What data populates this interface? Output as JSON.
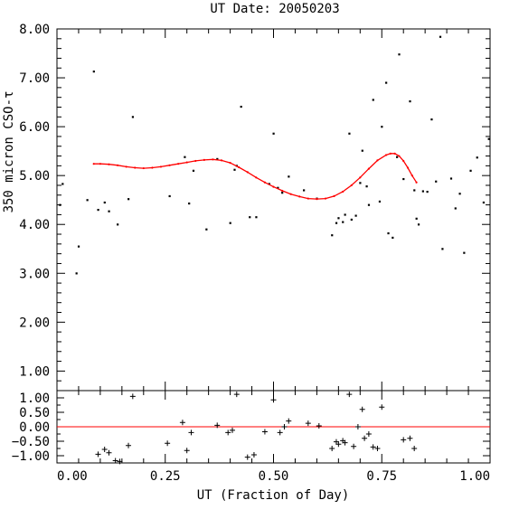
{
  "chart_data": [
    {
      "type": "scatter",
      "panel": "main",
      "title": "UT Date: 20050203",
      "xlabel": "",
      "ylabel": "350 micron CSO-τ",
      "xlim": [
        0.0,
        1.0
      ],
      "ylim": [
        0.6,
        8.0
      ],
      "yticks": [
        1.0,
        2.0,
        3.0,
        4.0,
        5.0,
        6.0,
        7.0,
        8.0
      ],
      "ytick_labels": [
        "1.00",
        "2.00",
        "3.00",
        "4.00",
        "5.00",
        "6.00",
        "7.00",
        "8.00"
      ],
      "grid": false,
      "series": [
        {
          "kind": "points",
          "color": "#000000",
          "x": [
            0.007,
            0.013,
            0.045,
            0.05,
            0.07,
            0.085,
            0.095,
            0.11,
            0.12,
            0.14,
            0.165,
            0.175,
            0.26,
            0.295,
            0.305,
            0.315,
            0.345,
            0.37,
            0.4,
            0.41,
            0.415,
            0.425,
            0.445,
            0.46,
            0.49,
            0.5,
            0.51,
            0.52,
            0.535,
            0.57,
            0.6,
            0.635,
            0.645,
            0.65,
            0.66,
            0.665,
            0.675,
            0.68,
            0.69,
            0.7,
            0.705,
            0.715,
            0.72,
            0.73,
            0.745,
            0.75,
            0.76,
            0.765,
            0.775,
            0.785,
            0.79,
            0.8,
            0.815,
            0.825,
            0.83,
            0.835,
            0.845,
            0.855,
            0.865,
            0.875,
            0.885,
            0.89,
            0.91,
            0.92,
            0.93,
            0.94,
            0.955,
            0.97,
            0.985,
            0.997
          ],
          "y": [
            4.4,
            4.83,
            3.0,
            3.55,
            4.5,
            7.13,
            4.3,
            4.45,
            4.27,
            4.0,
            4.52,
            6.2,
            4.58,
            5.38,
            4.43,
            5.1,
            3.9,
            5.34,
            4.03,
            5.12,
            5.2,
            6.41,
            4.15,
            4.15,
            4.83,
            5.86,
            4.75,
            4.65,
            4.98,
            4.7,
            4.53,
            3.78,
            4.03,
            4.13,
            4.05,
            4.2,
            5.86,
            4.1,
            4.18,
            4.85,
            5.51,
            4.78,
            4.4,
            6.55,
            4.47,
            6.0,
            6.9,
            3.82,
            3.73,
            5.38,
            7.48,
            4.93,
            6.52,
            4.7,
            4.12,
            4.0,
            4.68,
            4.67,
            6.15,
            4.88,
            7.84,
            3.5,
            4.94,
            4.33,
            4.63,
            3.42,
            5.1,
            5.37,
            4.45,
            5.75
          ]
        },
        {
          "kind": "fit",
          "color": "#ff0000",
          "x": [
            0.085,
            0.1,
            0.12,
            0.14,
            0.16,
            0.18,
            0.2,
            0.22,
            0.24,
            0.26,
            0.28,
            0.3,
            0.32,
            0.34,
            0.36,
            0.38,
            0.4,
            0.42,
            0.44,
            0.46,
            0.48,
            0.5,
            0.52,
            0.54,
            0.56,
            0.58,
            0.6,
            0.62,
            0.64,
            0.66,
            0.68,
            0.7,
            0.72,
            0.74,
            0.76,
            0.77,
            0.78,
            0.79,
            0.8,
            0.81,
            0.82,
            0.83
          ],
          "y": [
            5.24,
            5.24,
            5.23,
            5.21,
            5.18,
            5.16,
            5.15,
            5.16,
            5.18,
            5.21,
            5.24,
            5.27,
            5.3,
            5.32,
            5.33,
            5.31,
            5.26,
            5.17,
            5.07,
            4.96,
            4.86,
            4.77,
            4.69,
            4.62,
            4.57,
            4.53,
            4.52,
            4.53,
            4.58,
            4.67,
            4.8,
            4.96,
            5.14,
            5.31,
            5.42,
            5.45,
            5.45,
            5.4,
            5.3,
            5.16,
            5.0,
            4.86
          ]
        }
      ]
    },
    {
      "type": "scatter",
      "panel": "residuals",
      "title": "",
      "xlabel": "UT (Fraction of Day)",
      "ylabel": "",
      "xlim": [
        0.0,
        1.0
      ],
      "ylim": [
        -1.25,
        1.25
      ],
      "xticks": [
        0.0,
        0.25,
        0.5,
        0.75,
        1.0
      ],
      "xtick_labels": [
        "0.00",
        "0.25",
        "0.50",
        "0.75",
        "1.00"
      ],
      "yticks": [
        -1.0,
        -0.5,
        0.0,
        0.5,
        1.0
      ],
      "ytick_labels": [
        "−1.00",
        "−0.50",
        "0.00",
        "0.50",
        "1.00"
      ],
      "grid": false,
      "series": [
        {
          "kind": "residuals",
          "color": "#000000",
          "x": [
            0.095,
            0.11,
            0.12,
            0.135,
            0.145,
            0.165,
            0.175,
            0.255,
            0.29,
            0.3,
            0.31,
            0.37,
            0.395,
            0.405,
            0.415,
            0.44,
            0.455,
            0.48,
            0.5,
            0.515,
            0.525,
            0.535,
            0.58,
            0.605,
            0.635,
            0.645,
            0.65,
            0.66,
            0.665,
            0.675,
            0.685,
            0.695,
            0.705,
            0.71,
            0.72,
            0.73,
            0.74,
            0.75,
            0.8,
            0.815,
            0.825
          ],
          "y": [
            -0.95,
            -0.78,
            -0.9,
            -1.17,
            -1.2,
            -0.65,
            1.05,
            -0.57,
            0.15,
            -0.82,
            -0.2,
            0.05,
            -0.2,
            -0.12,
            1.12,
            -1.05,
            -0.97,
            -0.17,
            0.93,
            -0.2,
            0.0,
            0.2,
            0.12,
            0.03,
            -0.75,
            -0.52,
            -0.6,
            -0.48,
            -0.55,
            1.12,
            -0.68,
            0.0,
            0.6,
            -0.4,
            -0.25,
            -0.7,
            -0.75,
            0.68,
            -0.45,
            -0.4,
            -0.75
          ]
        },
        {
          "kind": "zero-line",
          "color": "#ff0000",
          "y": 0.0
        }
      ]
    }
  ]
}
